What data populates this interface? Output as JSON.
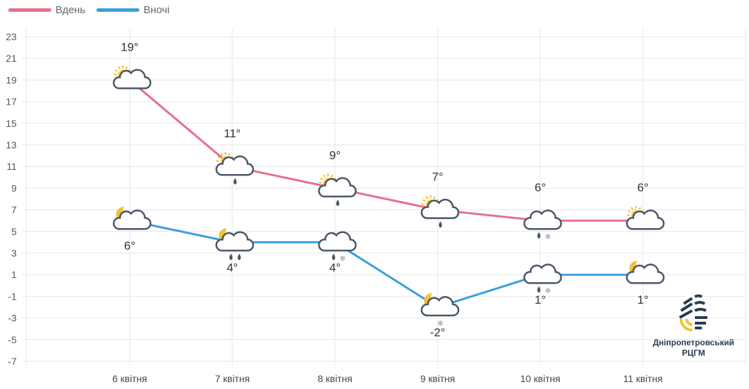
{
  "legend": [
    {
      "label": "Вдень",
      "color": "#e8708a"
    },
    {
      "label": "Вночі",
      "color": "#3a9fdc"
    }
  ],
  "logo": {
    "line1": "Дніпропетровський",
    "line2": "РЦГМ"
  },
  "chart_data": {
    "type": "line",
    "categories": [
      "6 квітня",
      "7 квітня",
      "8 квітня",
      "9 квітня",
      "10 квітня",
      "11 квітня"
    ],
    "ylim": [
      -7,
      23
    ],
    "yticks": [
      23,
      21,
      19,
      17,
      15,
      13,
      11,
      9,
      7,
      5,
      3,
      1,
      -1,
      -3,
      -5,
      -7
    ],
    "grid": true,
    "legend_position": "top-left",
    "series": [
      {
        "name": "Вдень",
        "color": "#e8708a",
        "values": [
          19,
          11,
          9,
          7,
          6,
          6
        ],
        "labels": [
          "19°",
          "11°",
          "9°",
          "7°",
          "6°",
          "6°"
        ],
        "icons": [
          "sun-cloud",
          "sun-cloud-rain",
          "sun-cloud-rain",
          "sun-cloud-rain",
          "cloud-rain-snow",
          "sun-cloud"
        ]
      },
      {
        "name": "Вночі",
        "color": "#3a9fdc",
        "values": [
          6,
          4,
          4,
          -2,
          1,
          1
        ],
        "labels": [
          "6°",
          "4°",
          "4°",
          "-2°",
          "1°",
          "1°"
        ],
        "icons": [
          "moon-cloud",
          "moon-cloud-rain2",
          "cloud-rain-snow",
          "moon-cloud-snow",
          "cloud-rain-snow",
          "moon-cloud"
        ]
      }
    ]
  }
}
